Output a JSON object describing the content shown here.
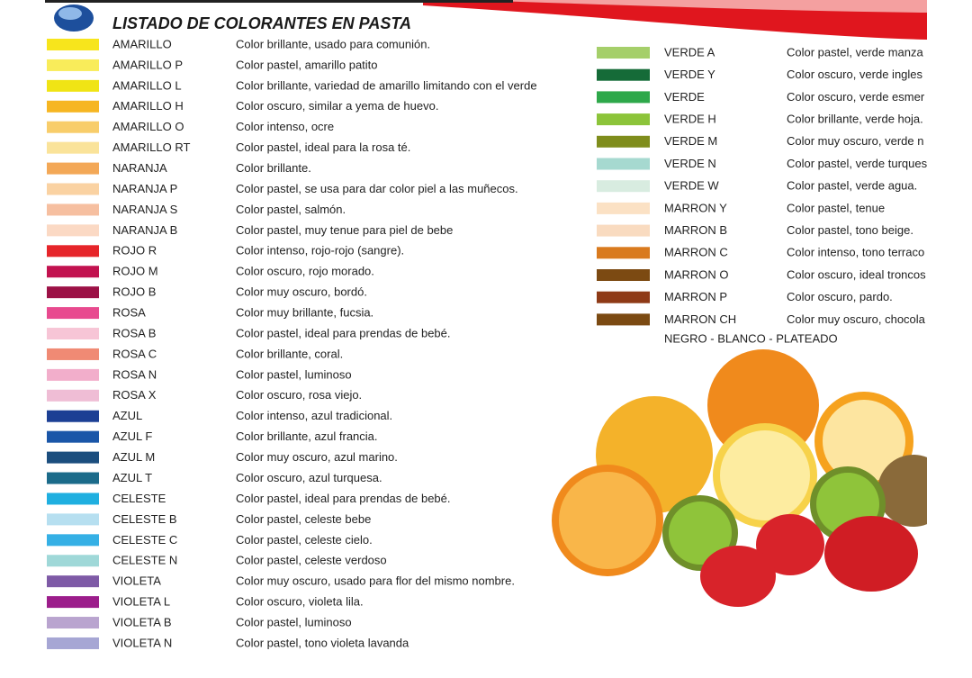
{
  "header": {
    "title": "LISTADO DE COLORANTES EN PASTA"
  },
  "left_list": [
    {
      "name": "AMARILLO",
      "description": "Color brillante, usado para comunión.",
      "color": "#f7e51c"
    },
    {
      "name": "AMARILLO P",
      "description": "Color pastel, amarillo patito",
      "color": "#f9ec5a"
    },
    {
      "name": "AMARILLO L",
      "description": "Color brillante, variedad de amarillo limitando con el verde",
      "color": "#f0e415"
    },
    {
      "name": "AMARILLO H",
      "description": "Color oscuro, similar a yema de huevo.",
      "color": "#f6b622"
    },
    {
      "name": "AMARILLO O",
      "description": "Color intenso, ocre",
      "color": "#f8cd6a"
    },
    {
      "name": "AMARILLO RT",
      "description": "Color pastel, ideal para la rosa té.",
      "color": "#fae39a"
    },
    {
      "name": "NARANJA",
      "description": "Color brillante.",
      "color": "#f3a857"
    },
    {
      "name": "NARANJA P",
      "description": "Color pastel, se usa para dar color piel a las muñecos.",
      "color": "#fad2a2"
    },
    {
      "name": "NARANJA S",
      "description": "Color pastel, salmón.",
      "color": "#f6bfa0"
    },
    {
      "name": "NARANJA B",
      "description": "Color pastel, muy tenue para piel de bebe",
      "color": "#fbd9c4"
    },
    {
      "name": "ROJO R",
      "description": "Color intenso, rojo-rojo (sangre).",
      "color": "#e6252a"
    },
    {
      "name": "ROJO M",
      "description": "Color oscuro, rojo morado.",
      "color": "#c2124f"
    },
    {
      "name": "ROJO B",
      "description": "Color muy oscuro, bordó.",
      "color": "#9c1146"
    },
    {
      "name": "ROSA",
      "description": "Color muy brillante, fucsia.",
      "color": "#e84a8f"
    },
    {
      "name": "ROSA B",
      "description": "Color pastel, ideal para prendas de bebé.",
      "color": "#f7c5d6"
    },
    {
      "name": "ROSA C",
      "description": "Color brillante, coral.",
      "color": "#f08a74"
    },
    {
      "name": "ROSA N",
      "description": "Color pastel, luminoso",
      "color": "#f2aecb"
    },
    {
      "name": "ROSA X",
      "description": "Color oscuro, rosa viejo.",
      "color": "#efbdd5"
    },
    {
      "name": "AZUL",
      "description": "Color intenso, azul tradicional.",
      "color": "#1c3f94"
    },
    {
      "name": "AZUL F",
      "description": "Color brillante, azul francia.",
      "color": "#1a56a8"
    },
    {
      "name": "AZUL M",
      "description": "Color muy oscuro, azul marino.",
      "color": "#1b4e7e"
    },
    {
      "name": "AZUL T",
      "description": "Color oscuro, azul turquesa.",
      "color": "#1b6b8a"
    },
    {
      "name": "CELESTE",
      "description": "Color pastel, ideal para prendas de bebé.",
      "color": "#1fafe0"
    },
    {
      "name": "CELESTE B",
      "description": "Color pastel, celeste bebe",
      "color": "#b6dff0"
    },
    {
      "name": "CELESTE C",
      "description": "Color pastel, celeste cielo.",
      "color": "#35b0e5"
    },
    {
      "name": "CELESTE N",
      "description": "Color pastel, celeste verdoso",
      "color": "#9fd8d8"
    },
    {
      "name": "VIOLETA",
      "description": "Color muy oscuro, usado para flor del mismo nombre.",
      "color": "#7e5aa6"
    },
    {
      "name": "VIOLETA L",
      "description": "Color oscuro, violeta lila.",
      "color": "#9c1d8b"
    },
    {
      "name": "VIOLETA B",
      "description": "Color pastel, luminoso",
      "color": "#b9a4cf"
    },
    {
      "name": "VIOLETA N",
      "description": "Color pastel, tono violeta lavanda",
      "color": "#a6a6d4"
    }
  ],
  "right_list": [
    {
      "name": "VERDE A",
      "description": "Color pastel, verde manza",
      "color": "#a5cf6a"
    },
    {
      "name": "VERDE Y",
      "description": "Color oscuro, verde ingles",
      "color": "#156b38"
    },
    {
      "name": "VERDE",
      "description": "Color oscuro, verde esmer",
      "color": "#2ea84a"
    },
    {
      "name": "VERDE H",
      "description": "Color brillante, verde hoja.",
      "color": "#8cc43a"
    },
    {
      "name": "VERDE M",
      "description": "Color muy oscuro, verde n",
      "color": "#7f8d1c"
    },
    {
      "name": "VERDE N",
      "description": "Color pastel, verde turques",
      "color": "#a6d9d0"
    },
    {
      "name": "VERDE W",
      "description": "Color pastel, verde agua.",
      "color": "#d8ece0"
    },
    {
      "name": "MARRON Y",
      "description": "Color pastel, tenue",
      "color": "#fbe1c4"
    },
    {
      "name": "MARRON B",
      "description": "Color pastel, tono beige.",
      "color": "#f9dbc0"
    },
    {
      "name": "MARRON C",
      "description": "Color intenso, tono terraco",
      "color": "#d97a1e"
    },
    {
      "name": "MARRON O",
      "description": "Color oscuro, ideal troncos",
      "color": "#7c4a12"
    },
    {
      "name": "MARRON P",
      "description": "Color oscuro, pardo.",
      "color": "#8e3a16"
    },
    {
      "name": "MARRON CH",
      "description": "Color muy oscuro, chocola",
      "color": "#7b4a12"
    }
  ],
  "footer_note": "NEGRO - BLANCO - PLATEADO"
}
